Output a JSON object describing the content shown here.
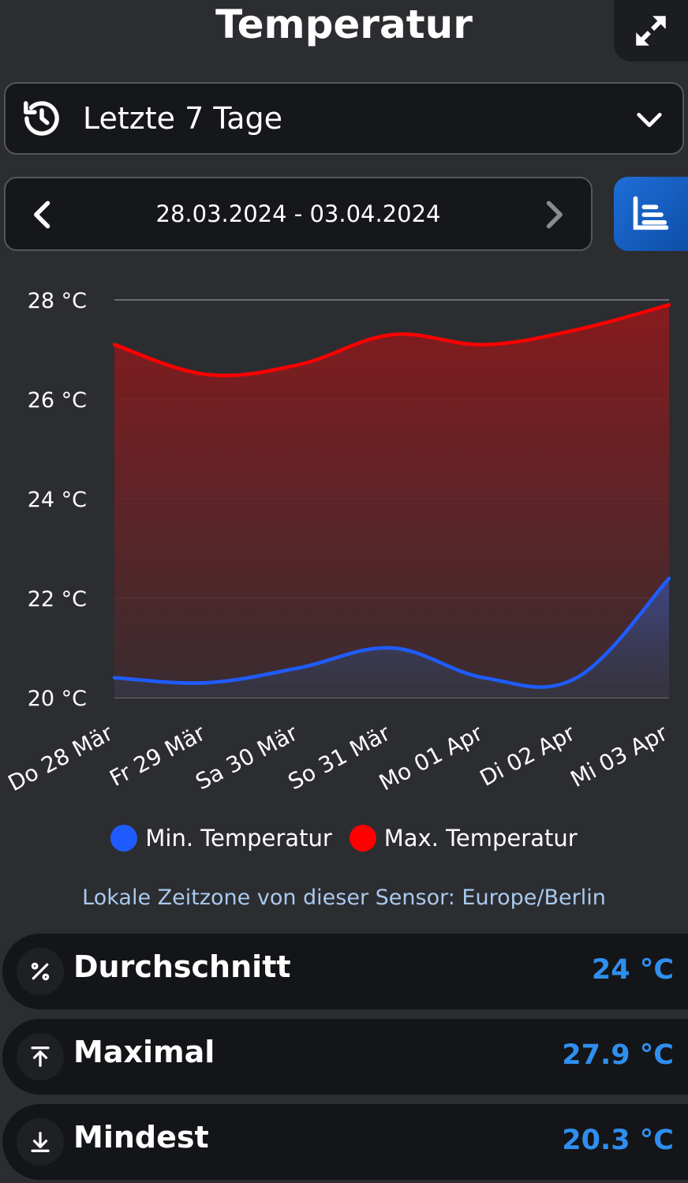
{
  "header": {
    "title": "Temperatur",
    "expand_icon": "expand-icon"
  },
  "range": {
    "icon": "history-icon",
    "label": "Letzte 7 Tage",
    "dropdown_icon": "chevron-down-icon"
  },
  "date_nav": {
    "range_text": "28.03.2024 - 03.04.2024",
    "prev_icon": "chevron-left-icon",
    "next_icon": "chevron-right-icon",
    "chart_icon": "bar-chart-icon"
  },
  "colors": {
    "min": "#1f5cff",
    "max": "#ff0000",
    "accent": "#2f8fef",
    "timezone": "#a8c9ee"
  },
  "chart_data": {
    "type": "area",
    "categories": [
      "Do 28 Mär",
      "Fr 29 Mär",
      "Sa 30 Mär",
      "So 31 Mär",
      "Mo 01 Apr",
      "Di 02 Apr",
      "Mi 03 Apr"
    ],
    "series": [
      {
        "name": "Min. Temperatur",
        "values": [
          20.4,
          20.3,
          20.6,
          21.0,
          20.4,
          20.4,
          22.4
        ]
      },
      {
        "name": "Max. Temperatur",
        "values": [
          27.1,
          26.5,
          26.7,
          27.3,
          27.1,
          27.4,
          27.9
        ]
      }
    ],
    "ylim": [
      20,
      28
    ],
    "yticks": [
      20,
      22,
      24,
      26,
      28
    ],
    "ytick_labels": [
      "20 °C",
      "22 °C",
      "24 °C",
      "26 °C",
      "28 °C"
    ],
    "grid": true,
    "legend": "bottom"
  },
  "legend": {
    "min_label": "Min. Temperatur",
    "max_label": "Max. Temperatur"
  },
  "timezone_note": "Lokale Zeitzone von dieser Sensor: Europe/Berlin",
  "stats": [
    {
      "icon": "percent-icon",
      "label": "Durchschnitt",
      "value": "24 °C"
    },
    {
      "icon": "arrow-up-to-line-icon",
      "label": "Maximal",
      "value": "27.9 °C"
    },
    {
      "icon": "arrow-down-to-line-icon",
      "label": "Mindest",
      "value": "20.3 °C"
    }
  ]
}
